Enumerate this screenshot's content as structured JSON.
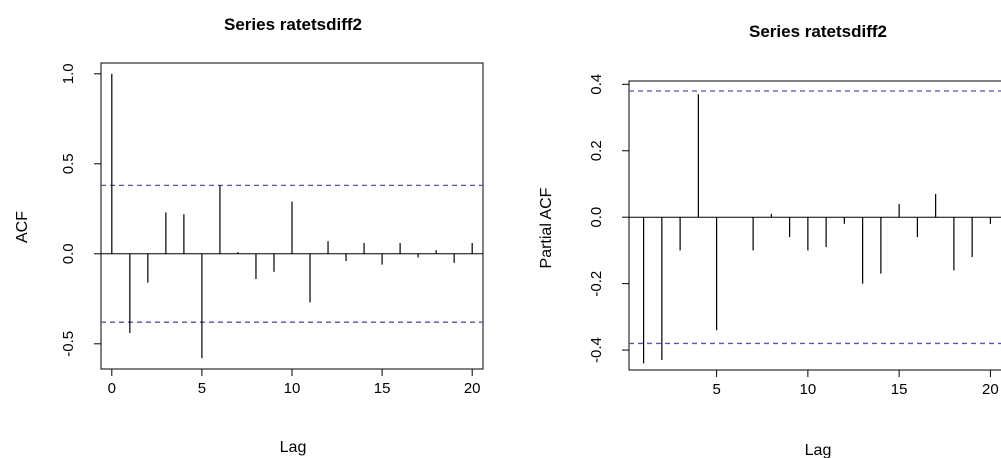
{
  "chart_data": [
    {
      "type": "bar",
      "title": "Series  ratetsdiff2",
      "xlabel": "Lag",
      "ylabel": "ACF",
      "xlim": [
        -0.6,
        20.6
      ],
      "ylim": [
        -0.64,
        1.06
      ],
      "xticks": [
        "0",
        "5",
        "10",
        "15",
        "20"
      ],
      "yticks": [
        "-0.5",
        "0.0",
        "0.5",
        "1.0"
      ],
      "ci": [
        0.38,
        -0.38
      ],
      "x": [
        0,
        1,
        2,
        3,
        4,
        5,
        6,
        7,
        8,
        9,
        10,
        11,
        12,
        13,
        14,
        15,
        16,
        17,
        18,
        19,
        20
      ],
      "values": [
        1.0,
        -0.44,
        -0.16,
        0.23,
        0.22,
        -0.58,
        0.38,
        0.01,
        -0.14,
        -0.1,
        0.29,
        -0.27,
        0.07,
        -0.04,
        0.06,
        -0.06,
        0.06,
        -0.02,
        0.02,
        -0.05,
        0.06
      ],
      "ci_color": "#5555aa"
    },
    {
      "type": "bar",
      "title": "Series  ratetsdiff2",
      "xlabel": "Lag",
      "ylabel": "Partial ACF",
      "xlim": [
        0.2,
        20.8
      ],
      "ylim": [
        -0.46,
        0.41
      ],
      "xticks": [
        "5",
        "10",
        "15",
        "20"
      ],
      "yticks": [
        "-0.4",
        "-0.2",
        "0.0",
        "0.2",
        "0.4"
      ],
      "ci": [
        0.38,
        -0.38
      ],
      "x": [
        1,
        2,
        3,
        4,
        5,
        6,
        7,
        8,
        9,
        10,
        11,
        12,
        13,
        14,
        15,
        16,
        17,
        18,
        19,
        20
      ],
      "values": [
        -0.44,
        -0.43,
        -0.1,
        0.37,
        -0.34,
        0.0,
        -0.1,
        0.01,
        -0.06,
        -0.1,
        -0.09,
        -0.02,
        -0.2,
        -0.17,
        0.04,
        -0.06,
        0.07,
        -0.16,
        -0.12,
        -0.02
      ],
      "ci_color": "#5555aa"
    }
  ]
}
